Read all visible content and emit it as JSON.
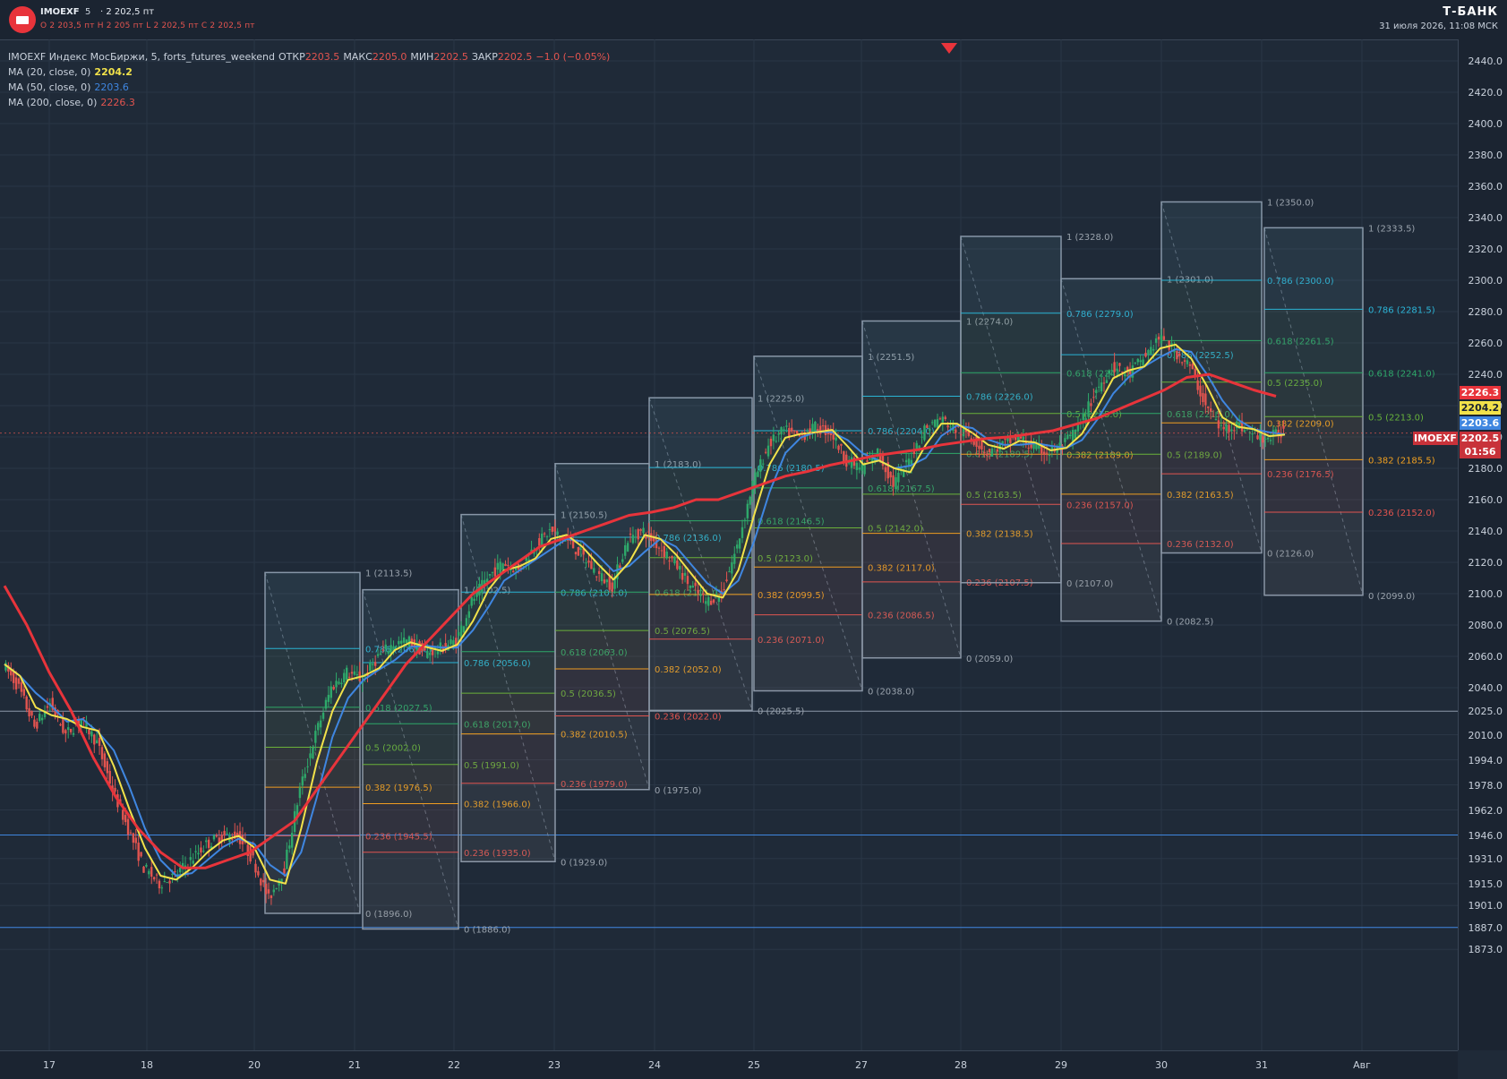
{
  "header": {
    "symbol": "IMOEXF",
    "timeframe": "5",
    "price_line": "· 2 202,5 пт",
    "ohlc_line": "О 2 203,5 пт   Н 2 205 пт   L 2 202,5 пт   С 2 202,5 пт",
    "brand": "Т-БАНК",
    "datetime": "31 июля 2026, 11:08 МСК"
  },
  "legend": {
    "main_label": "IMOEXF Индекс МосБиржи, 5, forts_futures_weekend",
    "open_label": "ОТКР",
    "open_value": "2203.5",
    "high_label": "МАКС",
    "high_value": "2205.0",
    "low_label": "МИН",
    "low_value": "2202.5",
    "close_label": "ЗАКР",
    "close_value": "2202.5",
    "change": "−1.0 (−0.05%)",
    "ma20_label": "MA (20, close, 0)",
    "ma20_value": "2204.2",
    "ma50_label": "MA (50, close, 0)",
    "ma50_value": "2203.6",
    "ma200_label": "MA (200, close, 0)",
    "ma200_value": "2226.3"
  },
  "price_tags": {
    "ma200": "2226.3",
    "ma20": "2204.2",
    "ma50": "2203.6",
    "last_price": "2202.5",
    "countdown": "01:56",
    "symbol": "IMOEXF"
  },
  "colors": {
    "background": "#1f2a38",
    "ma20": "#f2e24a",
    "ma50": "#3f86e0",
    "ma200": "#e8343b",
    "candle_up": "#2ea86a",
    "candle_down": "#e2544f"
  },
  "chart_data": {
    "type": "candlestick",
    "y_range": [
      1865,
      2450
    ],
    "price_ticks": [
      "2440.0",
      "2420.0",
      "2400.0",
      "2380.0",
      "2360.0",
      "2340.0",
      "2320.0",
      "2300.0",
      "2280.0",
      "2260.0",
      "2240.0",
      "2220.0",
      "2200.0",
      "2180.0",
      "2160.0",
      "2140.0",
      "2120.0",
      "2100.0",
      "2080.0",
      "2060.0",
      "2040.0",
      "2025.0",
      "2010.0",
      "1994.0",
      "1978.0",
      "1962.0",
      "1946.0",
      "1931.0",
      "1915.0",
      "1901.0",
      "1887.0",
      "1873.0"
    ],
    "x_labels": [
      "17",
      "18",
      "20",
      "21",
      "22",
      "23",
      "24",
      "25",
      "27",
      "28",
      "29",
      "30",
      "31",
      "Авг"
    ],
    "horizontal_lines": [
      {
        "price": 2025,
        "color": "#8a96a6"
      },
      {
        "price": 1946,
        "color": "#3f86e0"
      },
      {
        "price": 1887,
        "color": "#3f86e0"
      }
    ],
    "close_series": [
      2055,
      2040,
      2015,
      2030,
      2010,
      2020,
      2005,
      1975,
      1950,
      1925,
      1915,
      1920,
      1930,
      1940,
      1945,
      1946,
      1930,
      1905,
      1925,
      1975,
      2010,
      2040,
      2050,
      2045,
      2060,
      2068,
      2070,
      2062,
      2065,
      2070,
      2095,
      2110,
      2120,
      2115,
      2130,
      2140,
      2135,
      2125,
      2113,
      2105,
      2135,
      2140,
      2130,
      2120,
      2105,
      2095,
      2100,
      2130,
      2170,
      2195,
      2204,
      2200,
      2206,
      2203,
      2185,
      2180,
      2190,
      2170,
      2185,
      2205,
      2212,
      2205,
      2200,
      2190,
      2195,
      2200,
      2193,
      2190,
      2196,
      2208,
      2230,
      2245,
      2240,
      2250,
      2263,
      2255,
      2245,
      2220,
      2205,
      2208,
      2202,
      2199,
      2204
    ],
    "ma200_series": [
      2105,
      2080,
      2050,
      2025,
      1995,
      1970,
      1950,
      1935,
      1925,
      1925,
      1930,
      1935,
      1945,
      1955,
      1975,
      1995,
      2015,
      2035,
      2055,
      2070,
      2085,
      2100,
      2110,
      2120,
      2130,
      2135,
      2140,
      2145,
      2150,
      2152,
      2155,
      2160,
      2160,
      2165,
      2170,
      2175,
      2178,
      2182,
      2185,
      2188,
      2190,
      2192,
      2195,
      2197,
      2199,
      2200,
      2202,
      2204,
      2208,
      2212,
      2218,
      2224,
      2230,
      2238,
      2240,
      2235,
      2230,
      2226
    ],
    "fib_blocks": [
      {
        "high": 2113.5,
        "low": 1896.0,
        "levels": [
          [
            "1",
            "2113.5"
          ],
          [
            "0.786",
            "2065.0"
          ],
          [
            "0.618",
            "2027.5"
          ],
          [
            "0.5",
            "2002.0"
          ],
          [
            "0.382",
            "1976.5"
          ],
          [
            "0.236",
            "1945.5"
          ],
          [
            "0",
            "1896.0"
          ]
        ]
      },
      {
        "high": 2102.5,
        "low": 1886.0,
        "levels": [
          [
            "1",
            "2102.5"
          ],
          [
            "0.786",
            "2056.0"
          ],
          [
            "0.618",
            "2017.0"
          ],
          [
            "0.5",
            "1991.0"
          ],
          [
            "0.382",
            "1966.0"
          ],
          [
            "0.236",
            "1935.0"
          ],
          [
            "0",
            "1886.0"
          ]
        ]
      },
      {
        "high": 2150.5,
        "low": 1929.0,
        "levels": [
          [
            "1",
            "2150.5"
          ],
          [
            "0.786",
            "2101.0"
          ],
          [
            "0.618",
            "2063.0"
          ],
          [
            "0.5",
            "2036.5"
          ],
          [
            "0.382",
            "2010.5"
          ],
          [
            "0.236",
            "1979.0"
          ],
          [
            "0",
            "1929.0"
          ]
        ]
      },
      {
        "high": 2183.0,
        "low": 1975.0,
        "levels": [
          [
            "1",
            "2183.0"
          ],
          [
            "0.786",
            "2136.0"
          ],
          [
            "0.618",
            "2101.0"
          ],
          [
            "0.5",
            "2076.5"
          ],
          [
            "0.382",
            "2052.0"
          ],
          [
            "0.236",
            "2022.0"
          ],
          [
            "0",
            "1975.0"
          ]
        ]
      },
      {
        "high": 2225.0,
        "low": 2025.5,
        "levels": [
          [
            "1",
            "2225.0"
          ],
          [
            "0.786",
            "2180.5"
          ],
          [
            "0.618",
            "2146.5"
          ],
          [
            "0.5",
            "2123.0"
          ],
          [
            "0.382",
            "2099.5"
          ],
          [
            "0.236",
            "2071.0"
          ],
          [
            "0",
            "2025.5"
          ]
        ]
      },
      {
        "high": 2251.5,
        "low": 2038.0,
        "levels": [
          [
            "1",
            "2251.5"
          ],
          [
            "0.786",
            "2204.0"
          ],
          [
            "0.618",
            "2167.5"
          ],
          [
            "0.5",
            "2142.0"
          ],
          [
            "0.382",
            "2117.0"
          ],
          [
            "0.236",
            "2086.5"
          ],
          [
            "0",
            "2038.0"
          ]
        ]
      },
      {
        "high": 2274.0,
        "low": 2059.0,
        "levels": [
          [
            "1",
            "2274.0"
          ],
          [
            "0.786",
            "2226.0"
          ],
          [
            "0.618",
            "2189.5"
          ],
          [
            "0.5",
            "2163.5"
          ],
          [
            "0.382",
            "2138.5"
          ],
          [
            "0.236",
            "2107.5"
          ],
          [
            "0",
            "2059.0"
          ]
        ]
      },
      {
        "high": 2328.0,
        "low": 2107.0,
        "levels": [
          [
            "1",
            "2328.0"
          ],
          [
            "0.786",
            "2279.0"
          ],
          [
            "0.618",
            "2241.0"
          ],
          [
            "0.5",
            "2215.0"
          ],
          [
            "0.382",
            "2189.0"
          ],
          [
            "0.236",
            "2157.0"
          ],
          [
            "0",
            "2107.0"
          ]
        ]
      },
      {
        "high": 2301.0,
        "low": 2082.5,
        "levels": [
          [
            "1",
            "2301.0"
          ],
          [
            "0.786",
            "2252.5"
          ],
          [
            "0.618",
            "2215.0"
          ],
          [
            "0.5",
            "2189.0"
          ],
          [
            "0.382",
            "2163.5"
          ],
          [
            "0.236",
            "2132.0"
          ],
          [
            "0",
            "2082.5"
          ]
        ]
      },
      {
        "high": 2350.0,
        "low": 2126.0,
        "levels": [
          [
            "1",
            "2350.0"
          ],
          [
            "0.786",
            "2300.0"
          ],
          [
            "0.618",
            "2261.5"
          ],
          [
            "0.5",
            "2235.0"
          ],
          [
            "0.382",
            "2209.0"
          ],
          [
            "0.236",
            "2176.5"
          ],
          [
            "0",
            "2126.0"
          ]
        ]
      },
      {
        "high": 2333.5,
        "low": 2099.0,
        "levels": [
          [
            "1",
            "2333.5"
          ],
          [
            "0.786",
            "2281.5"
          ],
          [
            "0.618",
            "2241.0"
          ],
          [
            "0.5",
            "2213.0"
          ],
          [
            "0.382",
            "2185.5"
          ],
          [
            "0.236",
            "2152.0"
          ],
          [
            "0",
            "2099.0"
          ]
        ]
      }
    ]
  }
}
